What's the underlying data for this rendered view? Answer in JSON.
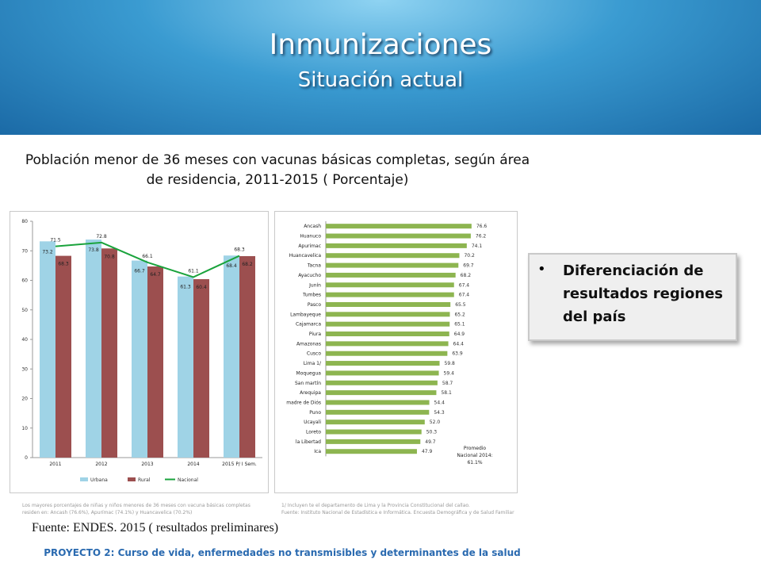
{
  "header": {
    "title": "Inmunizaciones",
    "subtitle": "Situación actual"
  },
  "chart_title": "Población menor de 36 meses con vacunas básicas completas, según área de residencia, 2011-2015 ( Porcentaje)",
  "left_chart": {
    "type": "bar",
    "categories": [
      "2011",
      "2012",
      "2013",
      "2014",
      "2015 P/ I Sem."
    ],
    "series": [
      {
        "name": "Urbana",
        "values": [
          73.2,
          73.8,
          66.7,
          61.3,
          68.4
        ],
        "color": "#9fd3e6"
      },
      {
        "name": "Rural",
        "values": [
          68.3,
          70.8,
          64.7,
          60.4,
          68.2
        ],
        "color": "#9c4f4f"
      },
      {
        "name": "Nacional",
        "values": [
          71.5,
          72.8,
          66.1,
          61.1,
          68.3
        ],
        "color": "#1aa33c"
      }
    ],
    "ylim": [
      0,
      80
    ],
    "yticks": [
      "0",
      "10",
      "20",
      "30",
      "40",
      "50",
      "60",
      "70",
      "80"
    ]
  },
  "right_chart": {
    "type": "bar",
    "categories": [
      "Ancash",
      "Huanuco",
      "Apurimac",
      "Huancavelica",
      "Tacna",
      "Ayacucho",
      "Junín",
      "Tumbes",
      "Pasco",
      "Lambayeque",
      "Cajamarca",
      "Piura",
      "Amazonas",
      "Cusco",
      "Lima 1/",
      "Moquegua",
      "San martín",
      "Arequipa",
      "madre de Diós",
      "Puno",
      "Ucayali",
      "Loreto",
      "la Libertad",
      "Ica"
    ],
    "values": [
      76.6,
      76.2,
      74.1,
      70.2,
      69.7,
      68.2,
      67.4,
      67.4,
      65.5,
      65.2,
      65.1,
      64.9,
      64.4,
      63.9,
      59.8,
      59.4,
      58.7,
      58.1,
      54.4,
      54.3,
      52.0,
      50.3,
      49.7,
      47.9
    ],
    "value_labels": [
      "76.6",
      "76.2",
      "74.1",
      "70.2",
      "69.7",
      "68.2",
      "67.4",
      "67.4",
      "65.5",
      "65.2",
      "65.1",
      "64.9",
      "64.4",
      "63.9",
      "59.8",
      "59.4",
      "58.7",
      "58.1",
      "54.4",
      "54.3",
      "52.0",
      "50.3",
      "49.7",
      "47.9"
    ],
    "color": "#8db550",
    "annotation": [
      "Promedio",
      "Nacional 2014:",
      "61.1%"
    ]
  },
  "chart_data": [
    {
      "type": "bar",
      "categories": [
        "2011",
        "2012",
        "2013",
        "2014",
        "2015 P/ I Sem."
      ],
      "series": [
        {
          "name": "Urbana",
          "values": [
            73.2,
            73.8,
            66.7,
            61.3,
            68.4
          ]
        },
        {
          "name": "Rural",
          "values": [
            68.3,
            70.8,
            64.7,
            60.4,
            68.2
          ]
        },
        {
          "name": "Nacional",
          "values": [
            71.5,
            72.8,
            66.1,
            61.1,
            68.3
          ]
        }
      ],
      "ylim": [
        0,
        80
      ]
    },
    {
      "type": "bar",
      "categories": [
        "Ancash",
        "Huanuco",
        "Apurimac",
        "Huancavelica",
        "Tacna",
        "Ayacucho",
        "Junín",
        "Tumbes",
        "Pasco",
        "Lambayeque",
        "Cajamarca",
        "Piura",
        "Amazonas",
        "Cusco",
        "Lima 1/",
        "Moquegua",
        "San martín",
        "Arequipa",
        "madre de Diós",
        "Puno",
        "Ucayali",
        "Loreto",
        "la Libertad",
        "Ica"
      ],
      "values": [
        76.6,
        76.2,
        74.1,
        70.2,
        69.7,
        68.2,
        67.4,
        67.4,
        65.5,
        65.2,
        65.1,
        64.9,
        64.4,
        63.9,
        59.8,
        59.4,
        58.7,
        58.1,
        54.4,
        54.3,
        52.0,
        50.3,
        49.7,
        47.9
      ]
    }
  ],
  "notes": {
    "left": [
      "Los mayores porcentajes de niñas y niños menores de 36 meses con vacuna básicas completas",
      "residen en: Ancash (76.6%), Apurímac (74.1%) y Huancavelica (70.2%)"
    ],
    "right": [
      "1/ Incluyen te el departamento de Lima y la Provincia Constitucional del callao.",
      "Fuente: Instituto Nacional de Estadística e Informática. Encuesta Demográfica y de Salud Familiar"
    ]
  },
  "fuente": "Fuente: ENDES. 2015 ( resultados preliminares)",
  "callout": {
    "text": "Diferenciación de resultados regiones del país",
    "bullet": "•"
  },
  "footer": "PROYECTO 2:  Curso de vida, enfermedades no transmisibles y determinantes de la salud"
}
